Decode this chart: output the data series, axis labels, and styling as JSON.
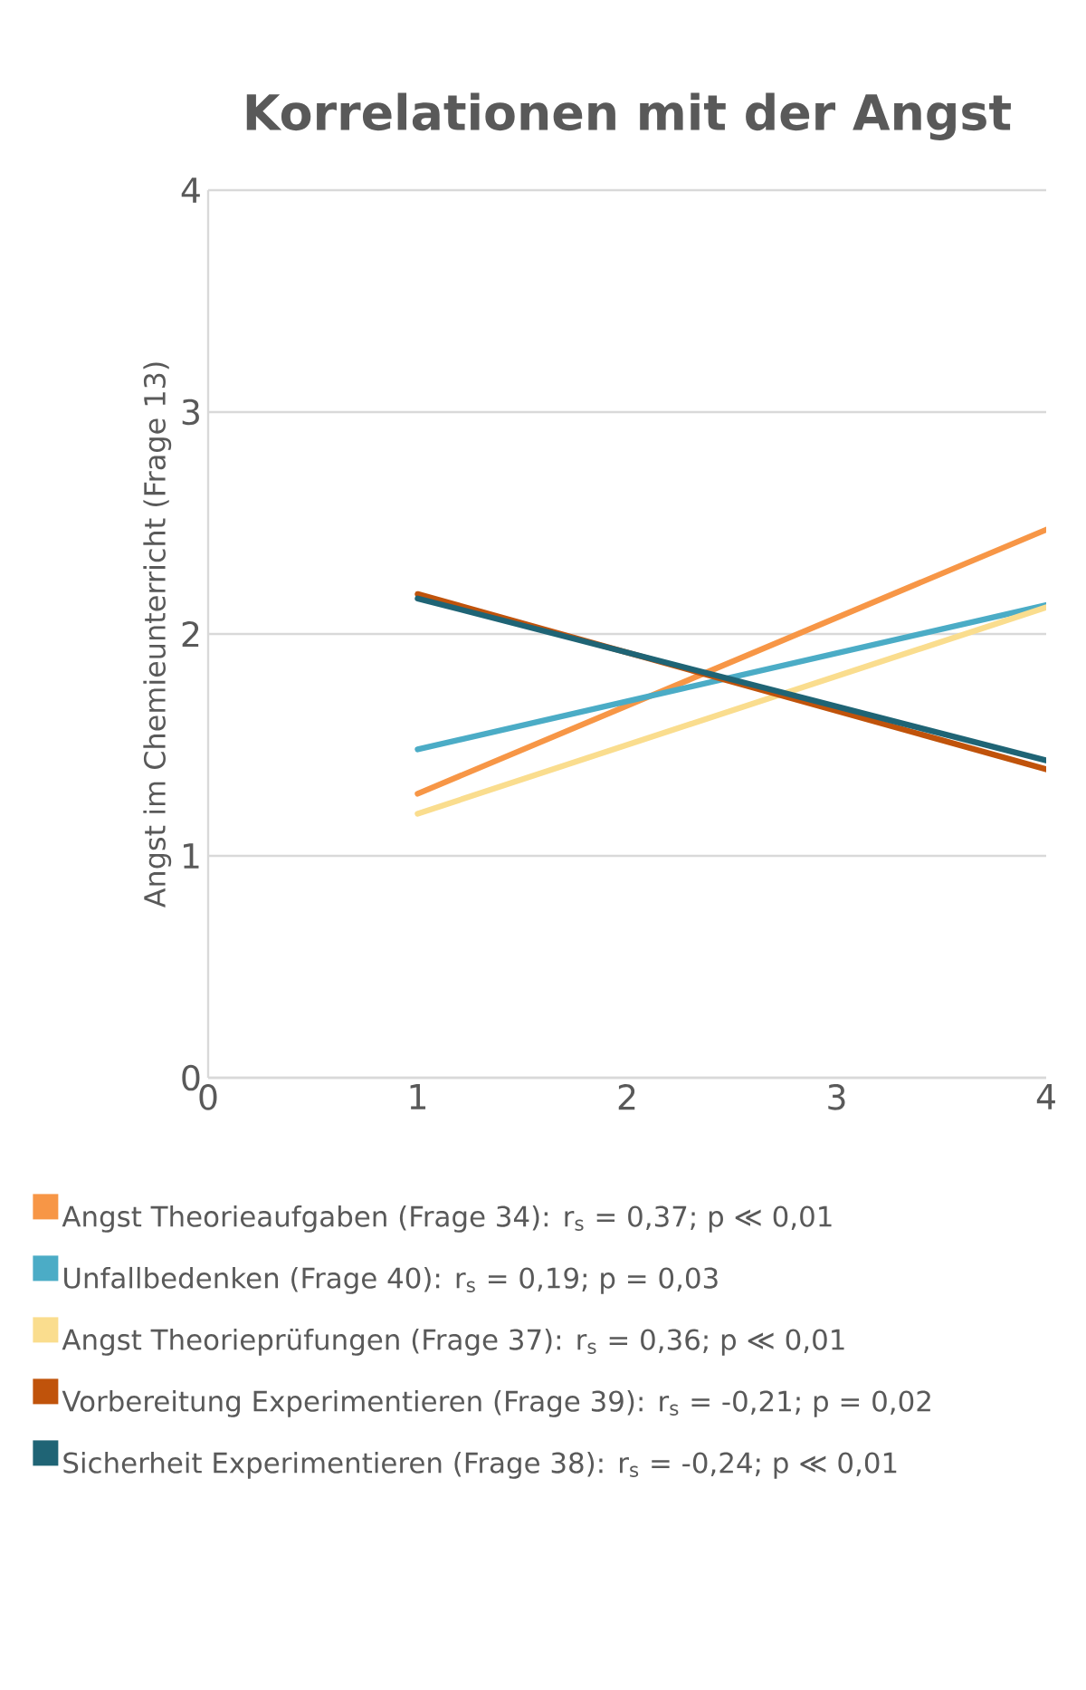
{
  "chart_data": {
    "type": "line",
    "title": "Korrelationen mit der Angst",
    "ylabel": "Angst im Chemieunterricht (Frage 13)",
    "x": [
      1,
      4
    ],
    "xlim": [
      0,
      4
    ],
    "xticks": [
      0,
      1,
      2,
      3,
      4
    ],
    "ylim": [
      0,
      4
    ],
    "yticks": [
      0,
      1,
      2,
      3,
      4
    ],
    "grid": "y",
    "legend": "bottom",
    "series": [
      {
        "name": "Angst Theorieaufgaben (Frage 34): r$_{s}$ = 0,37; p ≪ 0,01",
        "color": "#f79646",
        "values": [
          1.28,
          2.47
        ]
      },
      {
        "name": "Unfallbedenken (Frage 40): r$_{s}$ = 0,19; p = 0,03",
        "color": "#4bacc6",
        "values": [
          1.48,
          2.13
        ]
      },
      {
        "name": "Angst Theorieprüfungen (Frage 37): r$_{s}$ = 0,36; p ≪ 0,01",
        "color": "#fadd8e",
        "values": [
          1.19,
          2.12
        ]
      },
      {
        "name": "Vorbereitung Experimentieren (Frage 39): r$_{s}$ = -0,21; p = 0,02",
        "color": "#c0530b",
        "values": [
          2.18,
          1.39
        ]
      },
      {
        "name": "Sicherheit Experimentieren (Frage 38): r$_{s}$ = -0,24; p ≪ 0,01",
        "color": "#1f6475",
        "values": [
          2.16,
          1.43
        ]
      }
    ]
  }
}
